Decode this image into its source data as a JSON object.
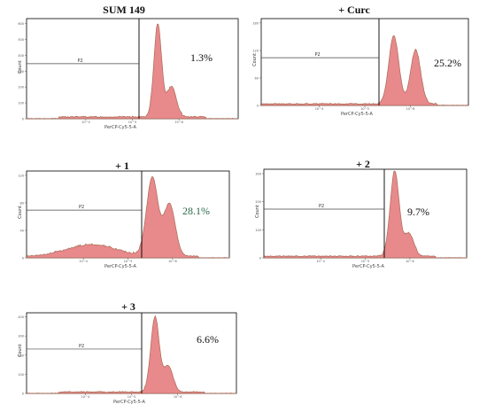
{
  "colors": {
    "fill": "#e8898c",
    "fill_dark": "#a96b55",
    "line": "#000000",
    "marker": "#444444"
  },
  "xlabel": "PerCP-Cy5-5-A",
  "ylabel": "Count",
  "gate_label": "P2",
  "chart_data": [
    {
      "type": "histogram",
      "title": "SUM 149",
      "percent_label": "1.3%",
      "gate_fraction": 0.013,
      "xlabel": "PerCP-Cy5-5-A",
      "ylabel": "Count",
      "xscale": "log",
      "x_ticks": [
        "10^4",
        "10^5",
        "10^6"
      ],
      "y_ticks": [
        "0",
        "100",
        "200",
        "300",
        "400",
        "500",
        "600"
      ],
      "peaks": [
        {
          "x": 0.62,
          "h": 0.93,
          "w": 0.018
        },
        {
          "x": 0.685,
          "h": 0.3,
          "w": 0.022
        }
      ],
      "baseline_from": 0.15
    },
    {
      "type": "histogram",
      "title": "+ Curc",
      "percent_label": "25.2%",
      "gate_fraction": 0.252,
      "xlabel": "PerCP-Cy5-5-A",
      "ylabel": "Count",
      "xscale": "log",
      "x_ticks": [
        "10^4",
        "10^5",
        "10^6"
      ],
      "y_ticks": [
        "0",
        "60",
        "120",
        "180"
      ],
      "peaks": [
        {
          "x": 0.64,
          "h": 0.78,
          "w": 0.024
        },
        {
          "x": 0.745,
          "h": 0.62,
          "w": 0.024
        }
      ],
      "baseline_from": 0.0
    },
    {
      "type": "histogram",
      "title": "+ 1",
      "percent_label": "28.1%",
      "gate_fraction": 0.281,
      "xlabel": "PerCP-Cy5-5-A",
      "ylabel": "Count",
      "xscale": "log",
      "x_ticks": [
        "10^4",
        "10^5",
        "10^6"
      ],
      "y_ticks": [
        "0",
        "40",
        "80",
        "120"
      ],
      "peaks": [
        {
          "x": 0.62,
          "h": 0.9,
          "w": 0.028
        },
        {
          "x": 0.705,
          "h": 0.6,
          "w": 0.028
        },
        {
          "x": 0.32,
          "h": 0.13,
          "w": 0.12
        }
      ],
      "baseline_from": 0.0
    },
    {
      "type": "histogram",
      "title": "+ 2",
      "percent_label": "9.7%",
      "gate_fraction": 0.097,
      "xlabel": "PerCP-Cy5-5-A",
      "ylabel": "Count",
      "xscale": "log",
      "x_ticks": [
        "10^4",
        "10^5",
        "10^6"
      ],
      "y_ticks": [
        "0",
        "100",
        "200",
        "300"
      ],
      "peaks": [
        {
          "x": 0.645,
          "h": 0.96,
          "w": 0.022
        },
        {
          "x": 0.715,
          "h": 0.25,
          "w": 0.024
        }
      ],
      "baseline_from": 0.0
    },
    {
      "type": "histogram",
      "title": "+ 3",
      "percent_label": "6.6%",
      "gate_fraction": 0.066,
      "xlabel": "PerCP-Cy5-5-A",
      "ylabel": "Count",
      "xscale": "log",
      "x_ticks": [
        "10^4",
        "10^5",
        "10^6"
      ],
      "y_ticks": [
        "0",
        "100",
        "200",
        "300",
        "400"
      ],
      "peaks": [
        {
          "x": 0.612,
          "h": 0.93,
          "w": 0.02
        },
        {
          "x": 0.675,
          "h": 0.32,
          "w": 0.022
        }
      ],
      "baseline_from": 0.15
    }
  ]
}
